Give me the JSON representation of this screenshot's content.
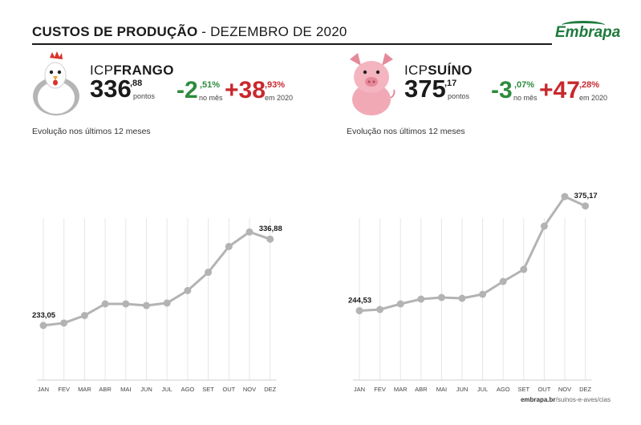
{
  "header": {
    "title_bold": "CUSTOS DE PRODUÇÃO",
    "title_rest": " - DEZEMBRO DE 2020"
  },
  "logo": {
    "text": "Embrapa"
  },
  "chicken": {
    "label_prefix": "ICP",
    "label_name": "FRANGO",
    "value_int": "336",
    "value_dec": ",88",
    "unit": "pontos",
    "month": {
      "sign": "-",
      "int": "2",
      "dec": ",51%",
      "caption": "no mês",
      "color": "#2e8b3d"
    },
    "year": {
      "sign": "+",
      "int": "38",
      "dec": ",93%",
      "caption": "em 2020",
      "color": "#c8282d"
    },
    "evolution_label": "Evolução nos últimos 12 meses"
  },
  "pig": {
    "label_prefix": "ICP",
    "label_name": "SUÍNO",
    "value_int": "375",
    "value_dec": ",17",
    "unit": "pontos",
    "month": {
      "sign": "-",
      "int": "3",
      "dec": ",07%",
      "caption": "no mês",
      "color": "#2e8b3d"
    },
    "year": {
      "sign": "+",
      "int": "47",
      "dec": ",28%",
      "caption": "em 2020",
      "color": "#c8282d"
    },
    "evolution_label": "Evolução nos últimos 12 meses"
  },
  "footer": {
    "site": "embrapa.br",
    "path": "/suinos-e-aves/cias"
  },
  "chart_data": [
    {
      "type": "line",
      "categories": [
        "JAN",
        "FEV",
        "MAR",
        "ABR",
        "MAI",
        "JUN",
        "JUL",
        "AGO",
        "SET",
        "OUT",
        "NOV",
        "DEZ"
      ],
      "series": [
        {
          "values": [
            233.05,
            236,
            245,
            259,
            259,
            257,
            260,
            275,
            297,
            328,
            345.5,
            336.88
          ]
        }
      ],
      "ylim": [
        150,
        420
      ],
      "labels": [
        {
          "index": 0,
          "text": "233,05"
        },
        {
          "index": 11,
          "text": "336,88"
        }
      ],
      "line_color": "#b3b3b3"
    },
    {
      "type": "line",
      "categories": [
        "JAN",
        "FEV",
        "MAR",
        "ABR",
        "MAI",
        "JUN",
        "JUL",
        "AGO",
        "SET",
        "OUT",
        "NOV",
        "DEZ"
      ],
      "series": [
        {
          "values": [
            244.53,
            246,
            253,
            259,
            261,
            260,
            265,
            281,
            296,
            350,
            386.9,
            375.17
          ]
        }
      ],
      "ylim": [
        140,
        420
      ],
      "labels": [
        {
          "index": 0,
          "text": "244,53"
        },
        {
          "index": 11,
          "text": "375,17"
        }
      ],
      "line_color": "#b3b3b3"
    }
  ]
}
